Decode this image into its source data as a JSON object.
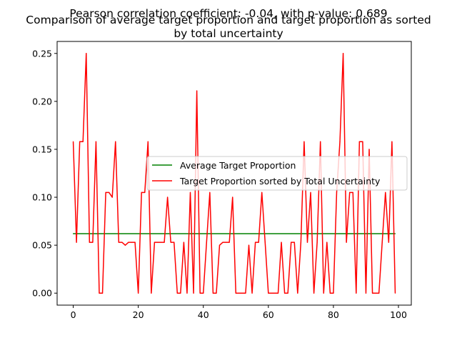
{
  "figure": {
    "suptitle": "Pearson correlation coefficient: -0.04, with p-value: 0.689",
    "title_line1": "Comparison of average target proportion and target proportion as sorted",
    "title_line2": "by total uncertainty"
  },
  "chart_data": {
    "type": "line",
    "title": "Comparison of average target proportion and target proportion as sorted by total uncertainty",
    "suptitle": "Pearson correlation coefficient: -0.04, with p-value: 0.689",
    "xlabel": "",
    "ylabel": "",
    "xlim": [
      -4.95,
      103.95
    ],
    "ylim": [
      -0.0125,
      0.2625
    ],
    "xticks": [
      0,
      20,
      40,
      60,
      80,
      100
    ],
    "yticks": [
      0.0,
      0.05,
      0.1,
      0.15,
      0.2,
      0.25
    ],
    "xtick_labels": [
      "0",
      "20",
      "40",
      "60",
      "80",
      "100"
    ],
    "ytick_labels": [
      "0.00",
      "0.05",
      "0.10",
      "0.15",
      "0.20",
      "0.25"
    ],
    "grid": false,
    "legend": {
      "position": "center-right",
      "entries": [
        "Average Target Proportion",
        "Target Proportion sorted by Total Uncertainty"
      ]
    },
    "series": [
      {
        "name": "Average Target Proportion",
        "color": "#008000",
        "x": [
          0,
          99
        ],
        "y": [
          0.062,
          0.062
        ]
      },
      {
        "name": "Target Proportion sorted by Total Uncertainty",
        "color": "#ff0000",
        "x": [
          0,
          1,
          2,
          3,
          4,
          5,
          6,
          7,
          8,
          9,
          10,
          11,
          12,
          13,
          14,
          15,
          16,
          17,
          18,
          19,
          20,
          21,
          22,
          23,
          24,
          25,
          26,
          27,
          28,
          29,
          30,
          31,
          32,
          33,
          34,
          35,
          36,
          37,
          38,
          39,
          40,
          41,
          42,
          43,
          44,
          45,
          46,
          47,
          48,
          49,
          50,
          51,
          52,
          53,
          54,
          55,
          56,
          57,
          58,
          59,
          60,
          61,
          62,
          63,
          64,
          65,
          66,
          67,
          68,
          69,
          70,
          71,
          72,
          73,
          74,
          75,
          76,
          77,
          78,
          79,
          80,
          81,
          82,
          83,
          84,
          85,
          86,
          87,
          88,
          89,
          90,
          91,
          92,
          93,
          94,
          95,
          96,
          97,
          98,
          99
        ],
        "y": [
          0.158,
          0.053,
          0.158,
          0.158,
          0.25,
          0.053,
          0.053,
          0.158,
          0.0,
          0.0,
          0.105,
          0.105,
          0.1,
          0.158,
          0.053,
          0.053,
          0.05,
          0.053,
          0.053,
          0.053,
          0.0,
          0.105,
          0.105,
          0.158,
          0.0,
          0.053,
          0.053,
          0.053,
          0.053,
          0.1,
          0.053,
          0.053,
          0.0,
          0.0,
          0.053,
          0.0,
          0.105,
          0.0,
          0.211,
          0.0,
          0.0,
          0.053,
          0.105,
          0.0,
          0.0,
          0.05,
          0.053,
          0.053,
          0.053,
          0.1,
          0.0,
          0.0,
          0.0,
          0.0,
          0.05,
          0.0,
          0.053,
          0.053,
          0.105,
          0.053,
          0.0,
          0.0,
          0.0,
          0.0,
          0.053,
          0.0,
          0.0,
          0.053,
          0.053,
          0.0,
          0.053,
          0.158,
          0.053,
          0.105,
          0.0,
          0.053,
          0.158,
          0.0,
          0.053,
          0.0,
          0.0,
          0.105,
          0.158,
          0.25,
          0.053,
          0.105,
          0.105,
          0.0,
          0.158,
          0.158,
          0.0,
          0.15,
          0.0,
          0.0,
          0.0,
          0.053,
          0.105,
          0.053,
          0.158,
          0.0
        ]
      }
    ]
  }
}
